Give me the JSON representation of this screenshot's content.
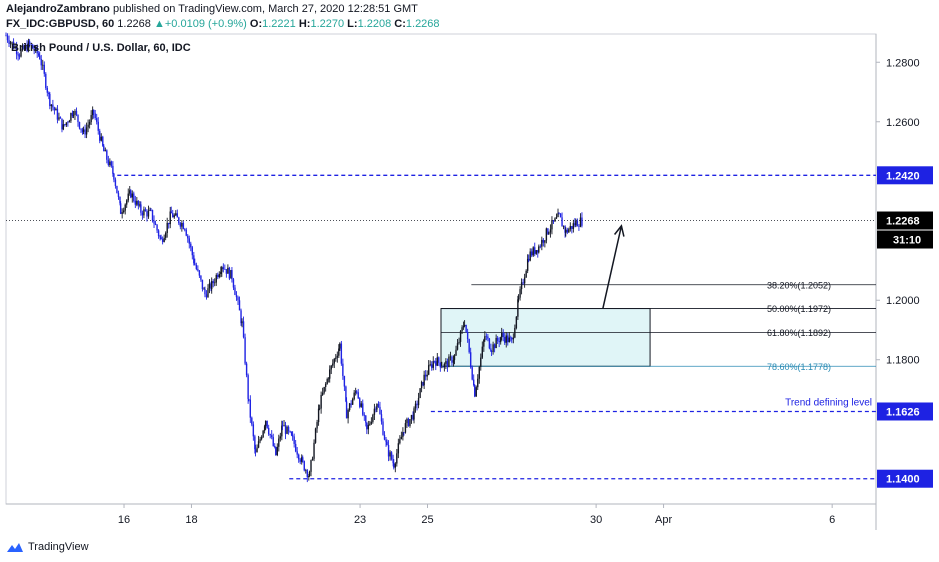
{
  "header": {
    "author": "AlejandroZambrano",
    "published_text": "published on TradingView.com, March 27, 2020 12:28:51 GMT",
    "symbol": "FX_IDC:GBPUSD, 60",
    "last_price": "1.2268",
    "change_arrow": "▲",
    "change": "+0.0109 (+0.9%)",
    "o_label": "O:",
    "o_value": "1.2221",
    "h_label": "H:",
    "h_value": "1.2270",
    "l_label": "L:",
    "l_value": "1.2208",
    "c_label": "C:",
    "c_value": "1.2268"
  },
  "footer": {
    "brand": "TradingView"
  },
  "chart_data": {
    "type": "candlestick",
    "title": "British Pound / U.S. Dollar, 60, IDC",
    "x_ticks": [
      {
        "label": "16",
        "day": 16
      },
      {
        "label": "18",
        "day": 18
      },
      {
        "label": "23",
        "day": 23
      },
      {
        "label": "25",
        "day": 25
      },
      {
        "label": "30",
        "day": 30
      },
      {
        "label": "Apr",
        "day": 32
      },
      {
        "label": "6",
        "day": 37
      }
    ],
    "x_range_days": [
      12.5,
      38.3
    ],
    "y_ticks": [
      1.28,
      1.26,
      1.2,
      1.18
    ],
    "y_tick_labels": [
      "1.2800",
      "1.2600",
      "1.2000",
      "1.1800"
    ],
    "ylim": [
      1.1315,
      1.2895
    ],
    "price_path": [
      [
        12.5,
        1.289
      ],
      [
        12.9,
        1.283
      ],
      [
        13.2,
        1.286
      ],
      [
        13.5,
        1.282
      ],
      [
        13.8,
        1.267
      ],
      [
        14.2,
        1.258
      ],
      [
        14.5,
        1.264
      ],
      [
        14.8,
        1.256
      ],
      [
        15.1,
        1.263
      ],
      [
        15.4,
        1.25
      ],
      [
        15.7,
        1.242
      ],
      [
        15.9,
        1.23
      ],
      [
        16.2,
        1.236
      ],
      [
        16.5,
        1.23
      ],
      [
        16.8,
        1.229
      ],
      [
        17.1,
        1.22
      ],
      [
        17.4,
        1.229
      ],
      [
        17.8,
        1.225
      ],
      [
        18.1,
        1.212
      ],
      [
        18.4,
        1.202
      ],
      [
        18.6,
        1.205
      ],
      [
        18.9,
        1.212
      ],
      [
        19.2,
        1.208
      ],
      [
        19.5,
        1.192
      ],
      [
        19.7,
        1.165
      ],
      [
        19.9,
        1.148
      ],
      [
        20.2,
        1.16
      ],
      [
        20.5,
        1.148
      ],
      [
        20.7,
        1.158
      ],
      [
        21.0,
        1.153
      ],
      [
        21.3,
        1.145
      ],
      [
        21.5,
        1.141
      ],
      [
        21.8,
        1.165
      ],
      [
        22.1,
        1.176
      ],
      [
        22.4,
        1.185
      ],
      [
        22.6,
        1.162
      ],
      [
        22.9,
        1.17
      ],
      [
        23.2,
        1.156
      ],
      [
        23.5,
        1.166
      ],
      [
        23.8,
        1.15
      ],
      [
        24.0,
        1.145
      ],
      [
        24.3,
        1.157
      ],
      [
        24.6,
        1.162
      ],
      [
        24.9,
        1.174
      ],
      [
        25.2,
        1.18
      ],
      [
        25.5,
        1.178
      ],
      [
        25.8,
        1.181
      ],
      [
        26.1,
        1.193
      ],
      [
        26.4,
        1.169
      ],
      [
        26.7,
        1.188
      ],
      [
        26.9,
        1.184
      ],
      [
        27.2,
        1.188
      ],
      [
        27.5,
        1.186
      ],
      [
        27.7,
        1.2
      ],
      [
        28.0,
        1.215
      ],
      [
        28.3,
        1.218
      ],
      [
        28.6,
        1.224
      ],
      [
        28.9,
        1.228
      ],
      [
        29.1,
        1.223
      ],
      [
        29.4,
        1.226
      ],
      [
        29.6,
        1.2268
      ]
    ],
    "horizontal_levels": [
      {
        "price": 1.242,
        "label": "1.2420",
        "style": "dashed",
        "color": "#1e22e3",
        "from_day": 15.8
      },
      {
        "price": 1.1626,
        "label": "1.1626",
        "style": "dashed",
        "color": "#1e22e3",
        "from_day": 25.1
      },
      {
        "price": 1.14,
        "label": "1.1400",
        "style": "dashed",
        "color": "#1e22e3",
        "from_day": 20.9
      }
    ],
    "current_price": {
      "price": 1.2268,
      "label": "1.2268",
      "countdown": "31:10"
    },
    "annotations": [
      {
        "text": "Trend defining level",
        "price": 1.1626,
        "color": "#1e22e3"
      }
    ],
    "fibonacci": {
      "box_from_day": 25.4,
      "box_to_day": 31.6,
      "box_color": "#e0f5f7",
      "levels": [
        {
          "text": "38.20%(1.2052)",
          "price": 1.2052,
          "from_day": 26.3,
          "color": "#131722"
        },
        {
          "text": "50.00%(1.1972)",
          "price": 1.1972,
          "from_day": 25.4,
          "color": "#131722"
        },
        {
          "text": "61.80%(1.1892)",
          "price": 1.1892,
          "from_day": 25.4,
          "color": "#131722"
        },
        {
          "text": "78.60%(1.1778)",
          "price": 1.1778,
          "from_day": 25.4,
          "color": "#2a8bb4"
        }
      ]
    },
    "arrow": {
      "from_day": 30.2,
      "from_price": 1.1972,
      "to_day": 30.75,
      "to_price": 1.225
    },
    "colors": {
      "candle": "#131722",
      "candle_down": "#1e22e3",
      "level": "#1e22e3",
      "axis_text": "#131722"
    }
  }
}
